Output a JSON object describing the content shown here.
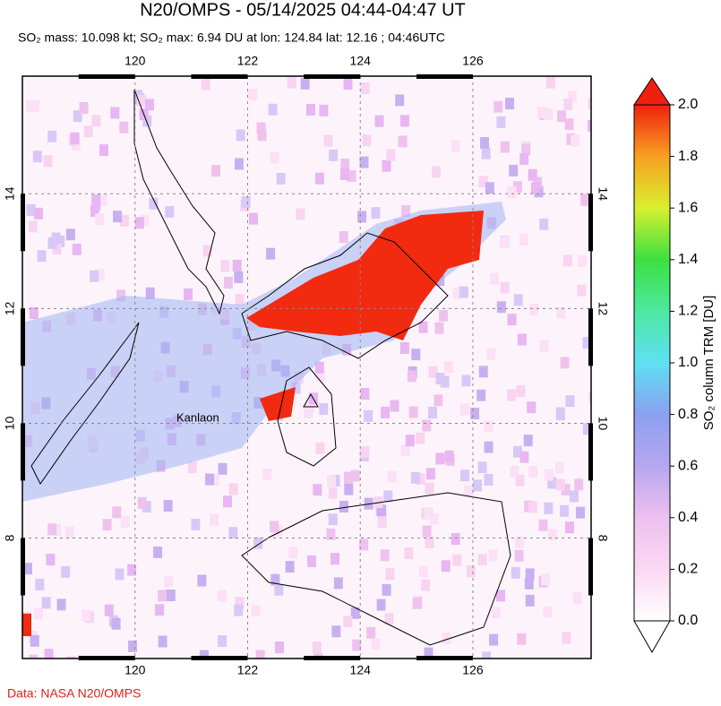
{
  "header": {
    "title": "N20/OMPS - 05/14/2025 04:44-04:47 UT",
    "subtitle": "SO₂ mass: 10.098 kt; SO₂ max: 6.94 DU at lon: 124.84 lat: 12.16 ; 04:46UTC"
  },
  "map": {
    "xlim": [
      118,
      128.1
    ],
    "ylim": [
      5.9,
      16.05
    ],
    "xticks": [
      120,
      122,
      124,
      126
    ],
    "yticks": [
      14,
      12,
      10,
      8
    ],
    "annotation": "Kanlaon"
  },
  "colorbar": {
    "label": "SO₂ column TRM [DU]",
    "lim": [
      0,
      2
    ],
    "ticks": [
      {
        "value": 0,
        "label": "0.0"
      },
      {
        "value": 0.2,
        "label": "0.2"
      },
      {
        "value": 0.4,
        "label": "0.4"
      },
      {
        "value": 0.6,
        "label": "0.6"
      },
      {
        "value": 0.8,
        "label": "0.8"
      },
      {
        "value": 1,
        "label": "1.0"
      },
      {
        "value": 1.2,
        "label": "1.2"
      },
      {
        "value": 1.4,
        "label": "1.4"
      },
      {
        "value": 1.6,
        "label": "1.6"
      },
      {
        "value": 1.8,
        "label": "1.8"
      },
      {
        "value": 2,
        "label": "2.0"
      }
    ]
  },
  "footer": {
    "credit": "Data: NASA N20/OMPS"
  }
}
